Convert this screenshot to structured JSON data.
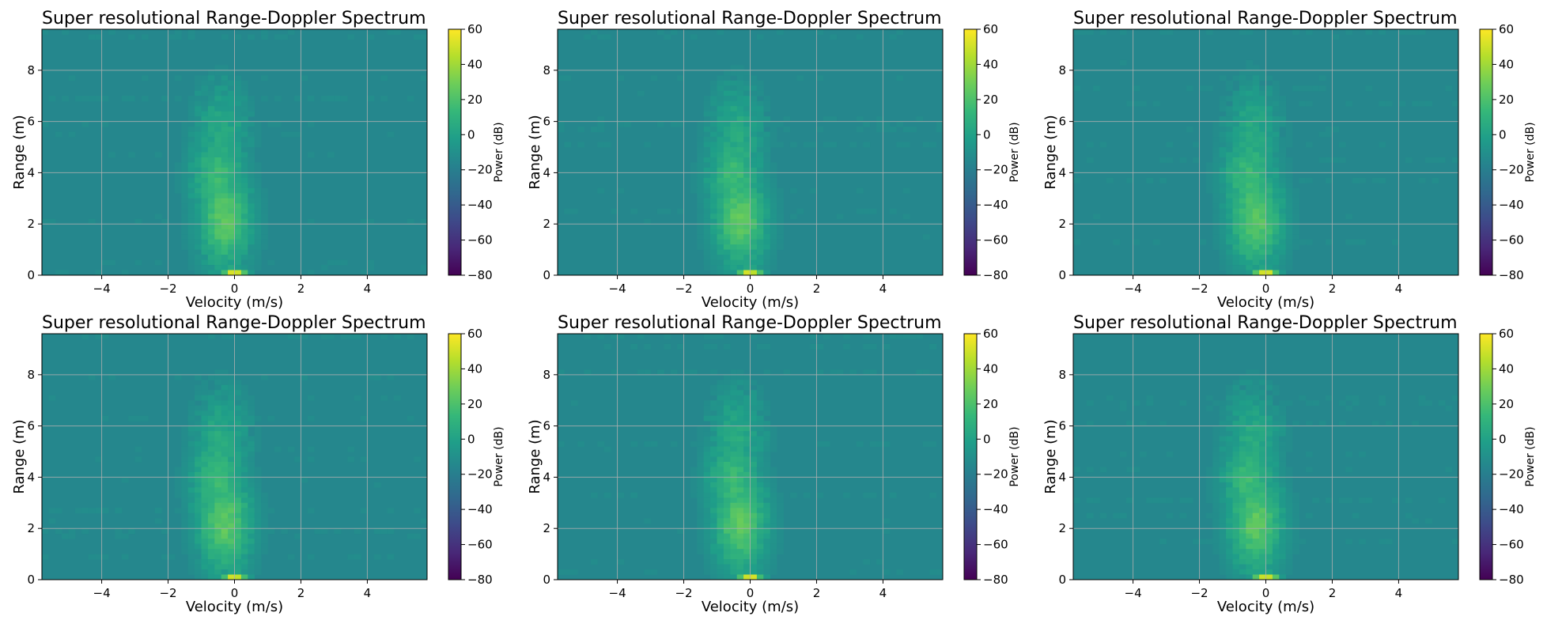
{
  "chart_data": [
    {
      "type": "heatmap",
      "title": "Super resolutional Range-Doppler Spectrum",
      "xlabel": "Velocity (m/s)",
      "ylabel": "Range (m)",
      "xlim": [
        -5.8,
        5.8
      ],
      "ylim": [
        0,
        9.6
      ],
      "xticks": [
        -4,
        -2,
        0,
        2,
        4
      ],
      "yticks": [
        0,
        2,
        4,
        6,
        8
      ],
      "grid": true,
      "colormap": "viridis",
      "colorbar": {
        "label": "Power (dB)",
        "range": [
          -80,
          60
        ],
        "ticks": [
          60,
          40,
          20,
          0,
          -20,
          -40,
          -60,
          -80
        ]
      },
      "background_db": -15,
      "hotspots": [
        {
          "velocity": -0.3,
          "range": 2.2,
          "power_db": 25
        },
        {
          "velocity": -0.5,
          "range": 3.8,
          "power_db": 15
        },
        {
          "velocity": -0.4,
          "range": 5.5,
          "power_db": 5
        },
        {
          "velocity": 0.0,
          "range": 0.1,
          "power_db": 55
        }
      ]
    },
    {
      "type": "heatmap",
      "title": "Super resolutional Range-Doppler Spectrum",
      "xlabel": "Velocity (m/s)",
      "ylabel": "Range (m)",
      "xlim": [
        -5.8,
        5.8
      ],
      "ylim": [
        0,
        9.6
      ],
      "xticks": [
        -4,
        -2,
        0,
        2,
        4
      ],
      "yticks": [
        0,
        2,
        4,
        6,
        8
      ],
      "grid": true,
      "colormap": "viridis",
      "colorbar": {
        "label": "Power (dB)",
        "range": [
          -80,
          60
        ],
        "ticks": [
          60,
          40,
          20,
          0,
          -20,
          -40,
          -60,
          -80
        ]
      },
      "background_db": -15,
      "hotspots": [
        {
          "velocity": -0.3,
          "range": 2.2,
          "power_db": 25
        },
        {
          "velocity": -0.5,
          "range": 3.8,
          "power_db": 15
        },
        {
          "velocity": -0.4,
          "range": 5.5,
          "power_db": 5
        },
        {
          "velocity": 0.0,
          "range": 0.1,
          "power_db": 55
        }
      ]
    },
    {
      "type": "heatmap",
      "title": "Super resolutional Range-Doppler Spectrum",
      "xlabel": "Velocity (m/s)",
      "ylabel": "Range (m)",
      "xlim": [
        -5.8,
        5.8
      ],
      "ylim": [
        0,
        9.6
      ],
      "xticks": [
        -4,
        -2,
        0,
        2,
        4
      ],
      "yticks": [
        0,
        2,
        4,
        6,
        8
      ],
      "grid": true,
      "colormap": "viridis",
      "colorbar": {
        "label": "Power (dB)",
        "range": [
          -80,
          60
        ],
        "ticks": [
          60,
          40,
          20,
          0,
          -20,
          -40,
          -60,
          -80
        ]
      },
      "background_db": -15,
      "hotspots": [
        {
          "velocity": -0.3,
          "range": 2.2,
          "power_db": 25
        },
        {
          "velocity": -0.5,
          "range": 3.8,
          "power_db": 15
        },
        {
          "velocity": -0.4,
          "range": 5.5,
          "power_db": 5
        },
        {
          "velocity": 0.0,
          "range": 0.1,
          "power_db": 55
        }
      ]
    },
    {
      "type": "heatmap",
      "title": "Super resolutional Range-Doppler Spectrum",
      "xlabel": "Velocity (m/s)",
      "ylabel": "Range (m)",
      "xlim": [
        -5.8,
        5.8
      ],
      "ylim": [
        0,
        9.6
      ],
      "xticks": [
        -4,
        -2,
        0,
        2,
        4
      ],
      "yticks": [
        0,
        2,
        4,
        6,
        8
      ],
      "grid": true,
      "colormap": "viridis",
      "colorbar": {
        "label": "Power (dB)",
        "range": [
          -80,
          60
        ],
        "ticks": [
          60,
          40,
          20,
          0,
          -20,
          -40,
          -60,
          -80
        ]
      },
      "background_db": -15,
      "hotspots": [
        {
          "velocity": -0.3,
          "range": 2.2,
          "power_db": 25
        },
        {
          "velocity": -0.5,
          "range": 3.8,
          "power_db": 15
        },
        {
          "velocity": -0.4,
          "range": 5.5,
          "power_db": 5
        },
        {
          "velocity": 0.0,
          "range": 0.1,
          "power_db": 55
        }
      ]
    },
    {
      "type": "heatmap",
      "title": "Super resolutional Range-Doppler Spectrum",
      "xlabel": "Velocity (m/s)",
      "ylabel": "Range (m)",
      "xlim": [
        -5.8,
        5.8
      ],
      "ylim": [
        0,
        9.6
      ],
      "xticks": [
        -4,
        -2,
        0,
        2,
        4
      ],
      "yticks": [
        0,
        2,
        4,
        6,
        8
      ],
      "grid": true,
      "colormap": "viridis",
      "colorbar": {
        "label": "Power (dB)",
        "range": [
          -80,
          60
        ],
        "ticks": [
          60,
          40,
          20,
          0,
          -20,
          -40,
          -60,
          -80
        ]
      },
      "background_db": -15,
      "hotspots": [
        {
          "velocity": -0.3,
          "range": 2.2,
          "power_db": 25
        },
        {
          "velocity": -0.5,
          "range": 3.8,
          "power_db": 15
        },
        {
          "velocity": -0.4,
          "range": 5.5,
          "power_db": 5
        },
        {
          "velocity": 0.0,
          "range": 0.1,
          "power_db": 55
        }
      ]
    },
    {
      "type": "heatmap",
      "title": "Super resolutional Range-Doppler Spectrum",
      "xlabel": "Velocity (m/s)",
      "ylabel": "Range (m)",
      "xlim": [
        -5.8,
        5.8
      ],
      "ylim": [
        0,
        9.6
      ],
      "xticks": [
        -4,
        -2,
        0,
        2,
        4
      ],
      "yticks": [
        0,
        2,
        4,
        6,
        8
      ],
      "grid": true,
      "colormap": "viridis",
      "colorbar": {
        "label": "Power (dB)",
        "range": [
          -80,
          60
        ],
        "ticks": [
          60,
          40,
          20,
          0,
          -20,
          -40,
          -60,
          -80
        ]
      },
      "background_db": -15,
      "hotspots": [
        {
          "velocity": -0.3,
          "range": 2.2,
          "power_db": 25
        },
        {
          "velocity": -0.5,
          "range": 3.8,
          "power_db": 15
        },
        {
          "velocity": -0.4,
          "range": 5.5,
          "power_db": 5
        },
        {
          "velocity": 0.0,
          "range": 0.1,
          "power_db": 55
        }
      ]
    }
  ]
}
